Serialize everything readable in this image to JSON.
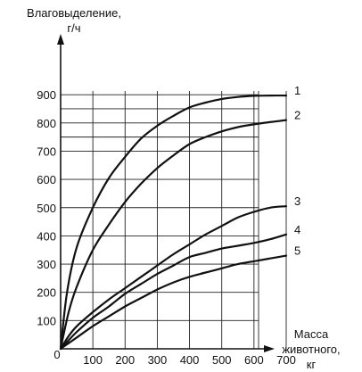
{
  "chart_data": {
    "type": "line",
    "ylabel_lines": [
      "Влаговыделение,",
      "г/ч"
    ],
    "xlabel_lines": [
      "Масса",
      "животного,",
      "кг"
    ],
    "origin_label": "0",
    "xlim": [
      0,
      800
    ],
    "ylim": [
      0,
      930
    ],
    "x_ticks": [
      100,
      200,
      300,
      400,
      500,
      600,
      700
    ],
    "y_ticks": [
      100,
      200,
      300,
      400,
      500,
      600,
      700,
      800,
      900
    ],
    "y_ticks_extra": [
      750,
      850
    ],
    "grid": true,
    "series": [
      {
        "name": "1",
        "x": [
          0,
          20,
          50,
          100,
          150,
          200,
          250,
          300,
          350,
          400,
          450,
          500,
          550,
          600,
          650,
          700
        ],
        "y": [
          0,
          200,
          360,
          500,
          605,
          680,
          745,
          790,
          825,
          855,
          872,
          885,
          892,
          896,
          897,
          897
        ]
      },
      {
        "name": "2",
        "x": [
          0,
          25,
          50,
          100,
          150,
          200,
          250,
          300,
          350,
          400,
          450,
          500,
          550,
          600,
          650,
          700
        ],
        "y": [
          0,
          130,
          220,
          350,
          440,
          520,
          585,
          640,
          685,
          725,
          750,
          770,
          785,
          795,
          803,
          810
        ]
      },
      {
        "name": "3",
        "x": [
          0,
          25,
          50,
          100,
          150,
          200,
          250,
          300,
          350,
          400,
          450,
          500,
          550,
          600,
          650,
          700
        ],
        "y": [
          0,
          45,
          80,
          130,
          175,
          215,
          255,
          295,
          335,
          370,
          405,
          435,
          465,
          485,
          500,
          505
        ]
      },
      {
        "name": "4",
        "x": [
          0,
          25,
          50,
          100,
          150,
          200,
          250,
          300,
          350,
          400,
          450,
          500,
          550,
          600,
          650,
          700
        ],
        "y": [
          0,
          30,
          60,
          110,
          150,
          195,
          230,
          265,
          295,
          325,
          340,
          355,
          365,
          375,
          388,
          405
        ]
      },
      {
        "name": "5",
        "x": [
          0,
          25,
          50,
          100,
          150,
          200,
          250,
          300,
          350,
          400,
          450,
          500,
          550,
          600,
          650,
          700
        ],
        "y": [
          0,
          20,
          40,
          80,
          115,
          150,
          180,
          210,
          235,
          255,
          270,
          285,
          300,
          310,
          320,
          330
        ]
      }
    ],
    "colors": {
      "line": "#111111",
      "grid": "#222222",
      "background": "#ffffff"
    }
  }
}
